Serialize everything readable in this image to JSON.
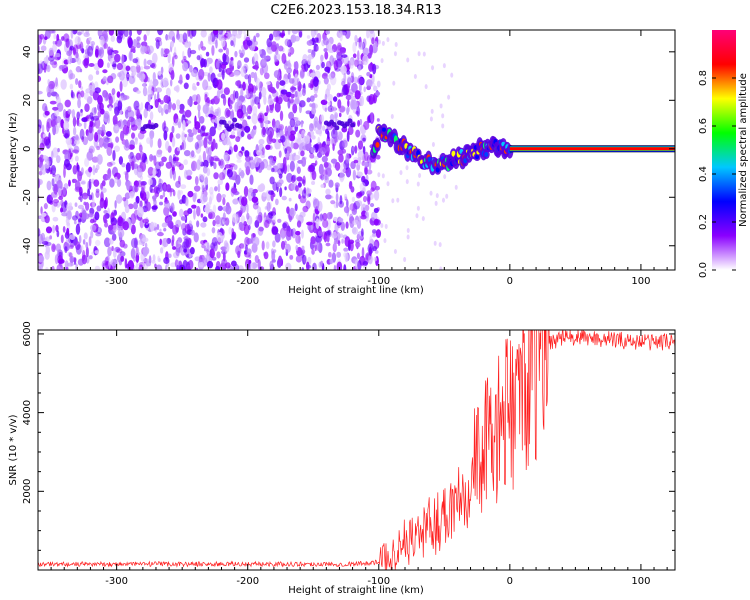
{
  "figure_title": "C2E6.2023.153.18.34.R13",
  "chart_data": [
    {
      "type": "heatmap",
      "title": "",
      "xlabel": "Height of straight line (km)",
      "ylabel": "Frequency (Hz)",
      "xlim": [
        -360,
        126
      ],
      "ylim": [
        -50,
        49
      ],
      "xticks": [
        -300,
        -200,
        -100,
        0,
        100
      ],
      "yticks": [
        -40,
        -20,
        0,
        20,
        40
      ],
      "colorbar": {
        "label": "Normalized spectral amplitude",
        "range": [
          0,
          1
        ],
        "ticks": [
          "0.0",
          "0.2",
          "0.4",
          "0.6",
          "0.8"
        ],
        "colormap": [
          "#ffffff",
          "#8a00ff",
          "#0000ff",
          "#00c8ff",
          "#00ff00",
          "#ffff00",
          "#ff0000",
          "#ff0077"
        ]
      },
      "noise_region_x": [
        -360,
        -100
      ],
      "signal_track": [
        {
          "x": -100,
          "y": 8
        },
        {
          "x": -80,
          "y": 0
        },
        {
          "x": -60,
          "y": -7
        },
        {
          "x": -40,
          "y": -4
        },
        {
          "x": -20,
          "y": 0
        },
        {
          "x": 0,
          "y": 1
        },
        {
          "x": 126,
          "y": 0
        }
      ],
      "carrier_x": [
        0,
        126
      ],
      "carrier_frequency_hz": 0
    },
    {
      "type": "line",
      "title": "",
      "xlabel": "Height of straight line (km)",
      "ylabel": "SNR (10 * v/v)",
      "xlim": [
        -360,
        126
      ],
      "ylim": [
        0,
        6100
      ],
      "xticks": [
        -300,
        -200,
        -100,
        0,
        100
      ],
      "yticks": [
        2000,
        4000,
        6000
      ],
      "series": [
        {
          "color": "#ff2020",
          "x": [
            -360,
            -320,
            -280,
            -240,
            -200,
            -160,
            -120,
            -100,
            -90,
            -80,
            -70,
            -60,
            -50,
            -40,
            -30,
            -20,
            -10,
            0,
            10,
            20,
            30,
            40,
            60,
            80,
            100,
            126
          ],
          "y": [
            150,
            150,
            150,
            150,
            150,
            150,
            150,
            200,
            400,
            700,
            900,
            1100,
            1400,
            1900,
            2600,
            3100,
            3500,
            4000,
            4800,
            5400,
            5800,
            5900,
            5900,
            5850,
            5800,
            5800
          ]
        }
      ]
    }
  ]
}
